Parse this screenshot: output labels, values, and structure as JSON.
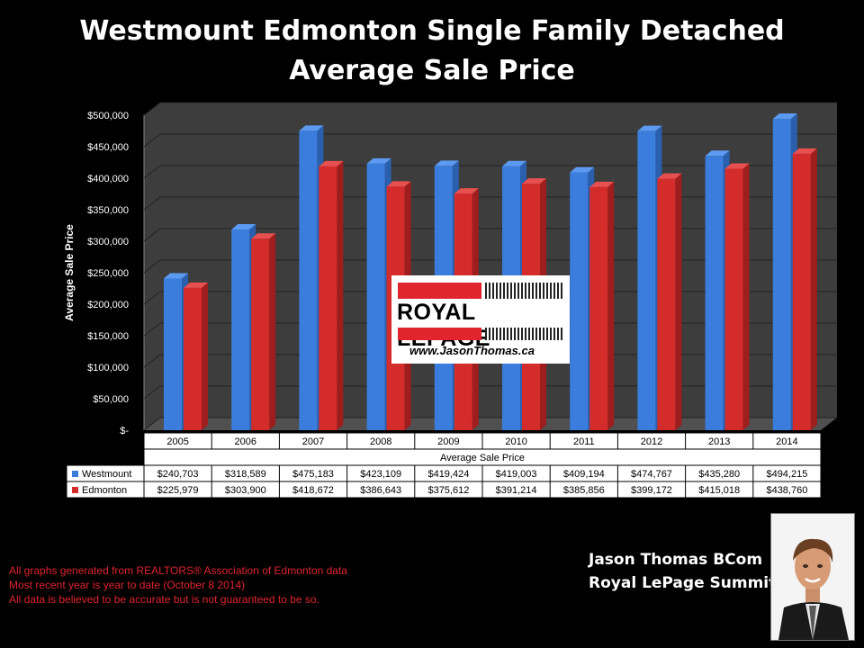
{
  "title_line1": "Westmount Edmonton Single Family Detached",
  "title_line2": "Average Sale Price",
  "chart_data": {
    "type": "bar",
    "categories": [
      "2005",
      "2006",
      "2007",
      "2008",
      "2009",
      "2010",
      "2011",
      "2012",
      "2013",
      "2014"
    ],
    "series": [
      {
        "name": "Westmount",
        "color": "#3b7ddd",
        "labels": [
          "$240,703",
          "$318,589",
          "$475,183",
          "$423,109",
          "$419,424",
          "$419,003",
          "$409,194",
          "$474,767",
          "$435,280",
          "$494,215"
        ],
        "values": [
          240703,
          318589,
          475183,
          423109,
          419424,
          419003,
          409194,
          474767,
          435280,
          494215
        ]
      },
      {
        "name": "Edmonton",
        "color": "#d42b2b",
        "labels": [
          "$225,979",
          "$303,900",
          "$418,672",
          "$386,643",
          "$375,612",
          "$391,214",
          "$385,856",
          "$399,172",
          "$415,018",
          "$438,760"
        ],
        "values": [
          225979,
          303900,
          418672,
          386643,
          375612,
          391214,
          385856,
          399172,
          415018,
          438760
        ]
      }
    ],
    "ylabel": "Average Sale Price",
    "xlabel": "Average Sale Price",
    "yticks": [
      "$-",
      "$50,000",
      "$100,000",
      "$150,000",
      "$200,000",
      "$250,000",
      "$300,000",
      "$350,000",
      "$400,000",
      "$450,000",
      "$500,000"
    ],
    "ylim": [
      0,
      500000
    ],
    "grid": true,
    "legend": "data-table"
  },
  "logo": {
    "word": "ROYAL LEPAGE",
    "url": "www.JasonThomas.ca"
  },
  "footer": [
    "All graphs generated from REALTORS® Association of Edmonton data",
    "Most recent year is year to date (October 8 2014)",
    "All data is believed to be accurate but is not guaranteed to be so."
  ],
  "signature": {
    "name": "Jason Thomas BCom",
    "company": "Royal LePage Summit"
  }
}
